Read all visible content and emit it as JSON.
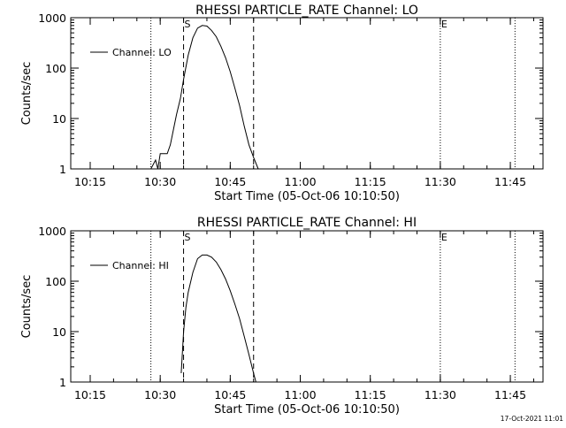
{
  "chart_data": [
    {
      "type": "line",
      "title": "RHESSI PARTICLE_RATE Channel: LO",
      "xlabel": "Start Time (05-Oct-06 10:10:50)",
      "ylabel": "Counts/sec",
      "yscale": "log",
      "ylim": [
        1,
        1000
      ],
      "xlim": [
        "10:10:50",
        "11:52:00"
      ],
      "xtick_labels": [
        "10:15",
        "10:30",
        "10:45",
        "11:00",
        "11:15",
        "11:30",
        "11:45"
      ],
      "ytick_labels": [
        "1",
        "10",
        "100",
        "1000"
      ],
      "legend": {
        "position": "top-left",
        "entries": [
          "Channel: LO"
        ]
      },
      "grid": false,
      "markers": [
        {
          "label": "S",
          "time": "10:35:00",
          "style": "dashed"
        },
        {
          "label": "",
          "time": "10:50:00",
          "style": "dashed"
        },
        {
          "label": "E",
          "time": "11:30:00",
          "style": "dotted"
        }
      ],
      "dotted_lines": [
        "10:28:00",
        "11:46:00"
      ],
      "series": [
        {
          "name": "Channel: LO",
          "x": [
            "10:28:00",
            "10:29:00",
            "10:29:30",
            "10:30:00",
            "10:30:40",
            "10:31:30",
            "10:32:10",
            "10:32:50",
            "10:33:30",
            "10:34:20",
            "10:35:00",
            "10:36:00",
            "10:37:00",
            "10:38:00",
            "10:39:00",
            "10:40:00",
            "10:41:00",
            "10:42:00",
            "10:43:00",
            "10:44:00",
            "10:45:00",
            "10:46:00",
            "10:47:00",
            "10:48:00",
            "10:49:00",
            "10:50:00",
            "10:51:00"
          ],
          "y": [
            1,
            1.5,
            1,
            2,
            2,
            2,
            3,
            6,
            12,
            25,
            60,
            180,
            400,
            620,
            700,
            680,
            560,
            420,
            270,
            160,
            85,
            40,
            18,
            7,
            3,
            1.7,
            1
          ]
        }
      ]
    },
    {
      "type": "line",
      "title": "RHESSI PARTICLE_RATE Channel: HI",
      "xlabel": "Start Time (05-Oct-06 10:10:50)",
      "ylabel": "Counts/sec",
      "yscale": "log",
      "ylim": [
        1,
        1000
      ],
      "xlim": [
        "10:10:50",
        "11:52:00"
      ],
      "xtick_labels": [
        "10:15",
        "10:30",
        "10:45",
        "11:00",
        "11:15",
        "11:30",
        "11:45"
      ],
      "ytick_labels": [
        "1",
        "10",
        "100",
        "1000"
      ],
      "legend": {
        "position": "top-left",
        "entries": [
          "Channel: HI"
        ]
      },
      "grid": false,
      "markers": [
        {
          "label": "S",
          "time": "10:35:00",
          "style": "dashed"
        },
        {
          "label": "",
          "time": "10:50:00",
          "style": "dashed"
        },
        {
          "label": "E",
          "time": "11:30:00",
          "style": "dotted"
        }
      ],
      "dotted_lines": [
        "10:28:00",
        "11:46:00"
      ],
      "series": [
        {
          "name": "Channel: HI",
          "x": [
            "10:34:30",
            "10:35:00",
            "10:35:30",
            "10:36:00",
            "10:37:00",
            "10:38:00",
            "10:39:00",
            "10:40:00",
            "10:41:00",
            "10:42:00",
            "10:43:00",
            "10:44:00",
            "10:45:00",
            "10:46:00",
            "10:47:00",
            "10:48:00",
            "10:49:00",
            "10:50:00",
            "10:50:30"
          ],
          "y": [
            1.5,
            10,
            30,
            60,
            150,
            280,
            330,
            330,
            300,
            240,
            170,
            110,
            65,
            35,
            18,
            8,
            3.5,
            1.5,
            1
          ]
        }
      ]
    }
  ],
  "footer": {
    "timestamp": "17-Oct-2021 11:01"
  }
}
